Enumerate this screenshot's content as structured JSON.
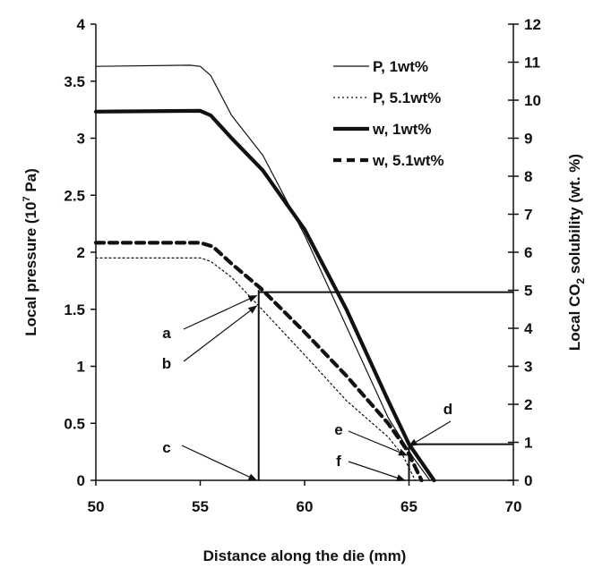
{
  "chart_data": {
    "type": "line",
    "title": "",
    "xlabel": "Distance along the die (mm)",
    "ylabel": "Local pressure (10",
    "ylabel_exp": "7",
    "ylabel_tail": " Pa)",
    "y2label_pre": "Local CO",
    "y2label_sub": "2",
    "y2label_post": " solubility (wt. %)",
    "xlim": [
      50,
      70
    ],
    "ylim": [
      0,
      4
    ],
    "y2lim": [
      0,
      12
    ],
    "xticks": [
      "50",
      "55",
      "60",
      "65",
      "70"
    ],
    "yticks": [
      "0",
      "0.5",
      "1",
      "1.5",
      "2",
      "2.5",
      "3",
      "3.5",
      "4"
    ],
    "y2ticks": [
      "0",
      "1",
      "2",
      "3",
      "4",
      "5",
      "6",
      "7",
      "8",
      "9",
      "10",
      "11",
      "12"
    ],
    "grid": false,
    "legend_position": "top-right",
    "series": [
      {
        "name": "P, 1wt%",
        "axis": "left",
        "style": "thin-solid",
        "x": [
          50,
          54.5,
          55.0,
          55.5,
          56.5,
          58,
          60,
          62,
          64,
          65.2,
          66.0
        ],
        "y": [
          3.63,
          3.64,
          3.63,
          3.55,
          3.2,
          2.85,
          2.15,
          1.35,
          0.55,
          0.2,
          0.0
        ]
      },
      {
        "name": "P, 5.1wt%",
        "axis": "left",
        "style": "dotted",
        "x": [
          50,
          55.0,
          55.5,
          56.5,
          57.8,
          60,
          62,
          64,
          64.7,
          65.3
        ],
        "y": [
          1.95,
          1.95,
          1.92,
          1.78,
          1.53,
          1.1,
          0.7,
          0.38,
          0.22,
          0.0
        ]
      },
      {
        "name": "w, 1wt%",
        "axis": "right",
        "style": "thick-solid",
        "x": [
          50,
          55.0,
          55.5,
          56.5,
          58,
          60,
          62,
          64,
          65.0,
          66.2
        ],
        "y": [
          9.7,
          9.72,
          9.6,
          9.0,
          8.15,
          6.6,
          4.5,
          2.1,
          0.95,
          0.0
        ]
      },
      {
        "name": "w, 5.1wt%",
        "axis": "right",
        "style": "thick-dashed",
        "x": [
          50,
          55.0,
          55.6,
          56.5,
          57.9,
          60,
          62,
          64,
          64.9,
          65.6
        ],
        "y": [
          6.25,
          6.25,
          6.15,
          5.7,
          5.05,
          3.9,
          2.75,
          1.5,
          0.8,
          0.0
        ]
      }
    ],
    "reference_lines": [
      {
        "axis": "right",
        "x_from": 57.8,
        "x_to": 70,
        "y": 4.95
      },
      {
        "axis": "right",
        "x_from": 65.0,
        "x_to": 70,
        "y": 0.95
      },
      {
        "axis": "left",
        "x": 57.8,
        "y_from": 0,
        "y_to": 1.67
      },
      {
        "axis": "left",
        "x": 65.0,
        "y_from": 0,
        "y_to": 0.32
      }
    ],
    "annotations": [
      {
        "label": "a",
        "target_x": 57.7,
        "target_y": 1.62
      },
      {
        "label": "b",
        "target_x": 57.7,
        "target_y": 1.53
      },
      {
        "label": "c",
        "target_x": 57.7,
        "target_y": 0.0
      },
      {
        "label": "d",
        "target_x": 65.0,
        "target_y": 0.3
      },
      {
        "label": "e",
        "target_x": 64.9,
        "target_y": 0.22
      },
      {
        "label": "f",
        "target_x": 64.8,
        "target_y": 0.0
      }
    ]
  }
}
